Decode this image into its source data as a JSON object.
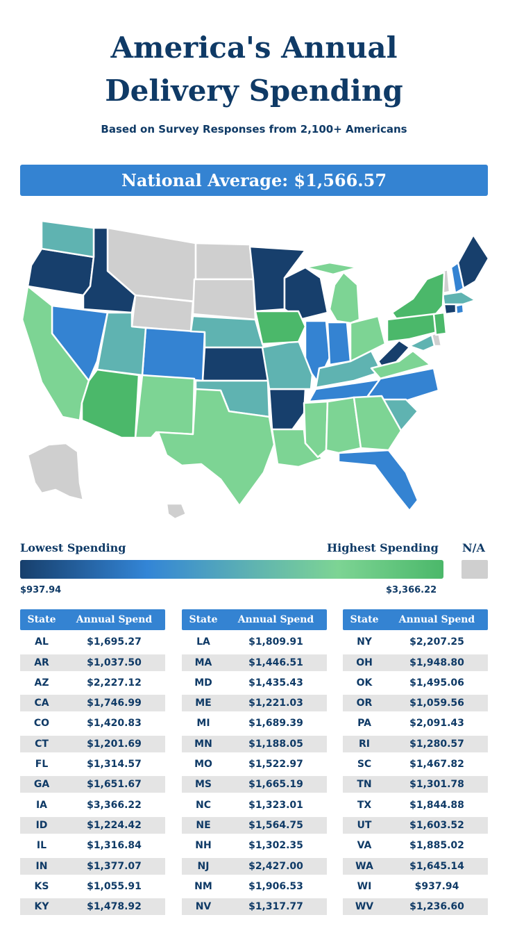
{
  "header": {
    "title_line1": "America's Annual",
    "title_line2": "Delivery Spending",
    "subtitle": "Based on Survey Responses from 2,100+ Americans"
  },
  "national_average": "National Average: $1,566.57",
  "legend": {
    "lowest_label": "Lowest Spending",
    "highest_label": "Highest Spending",
    "na_label": "N/A",
    "min_value": "$937.94",
    "max_value": "$3,366.22"
  },
  "colors": {
    "navy": "#173f6c",
    "blue": "#3483d2",
    "teal": "#5fb3b1",
    "light_green": "#7dd494",
    "green": "#4bb86a",
    "na_gray": "#cfcfcf",
    "title": "#0f3a66"
  },
  "chart_data": {
    "type": "table",
    "title": "America's Annual Delivery Spending",
    "columns": [
      "State",
      "Annual Spend"
    ],
    "rows": [
      [
        "AL",
        "$1,695.27"
      ],
      [
        "AR",
        "$1,037.50"
      ],
      [
        "AZ",
        "$2,227.12"
      ],
      [
        "CA",
        "$1,746.99"
      ],
      [
        "CO",
        "$1,420.83"
      ],
      [
        "CT",
        "$1,201.69"
      ],
      [
        "FL",
        "$1,314.57"
      ],
      [
        "GA",
        "$1,651.67"
      ],
      [
        "IA",
        "$3,366.22"
      ],
      [
        "ID",
        "$1,224.42"
      ],
      [
        "IL",
        "$1,316.84"
      ],
      [
        "IN",
        "$1,377.07"
      ],
      [
        "KS",
        "$1,055.91"
      ],
      [
        "KY",
        "$1,478.92"
      ],
      [
        "LA",
        "$1,809.91"
      ],
      [
        "MA",
        "$1,446.51"
      ],
      [
        "MD",
        "$1,435.43"
      ],
      [
        "ME",
        "$1,221.03"
      ],
      [
        "MI",
        "$1,689.39"
      ],
      [
        "MN",
        "$1,188.05"
      ],
      [
        "MO",
        "$1,522.97"
      ],
      [
        "MS",
        "$1,665.19"
      ],
      [
        "NC",
        "$1,323.01"
      ],
      [
        "NE",
        "$1,564.75"
      ],
      [
        "NH",
        "$1,302.35"
      ],
      [
        "NJ",
        "$2,427.00"
      ],
      [
        "NM",
        "$1,906.53"
      ],
      [
        "NV",
        "$1,317.77"
      ],
      [
        "NY",
        "$2,207.25"
      ],
      [
        "OH",
        "$1,948.80"
      ],
      [
        "OK",
        "$1,495.06"
      ],
      [
        "OR",
        "$1,059.56"
      ],
      [
        "PA",
        "$2,091.43"
      ],
      [
        "RI",
        "$1,280.57"
      ],
      [
        "SC",
        "$1,467.82"
      ],
      [
        "TN",
        "$1,301.78"
      ],
      [
        "TX",
        "$1,844.88"
      ],
      [
        "UT",
        "$1,603.52"
      ],
      [
        "VA",
        "$1,885.02"
      ],
      [
        "WA",
        "$1,645.14"
      ],
      [
        "WI",
        "$937.94"
      ],
      [
        "WV",
        "$1,236.60"
      ]
    ]
  }
}
